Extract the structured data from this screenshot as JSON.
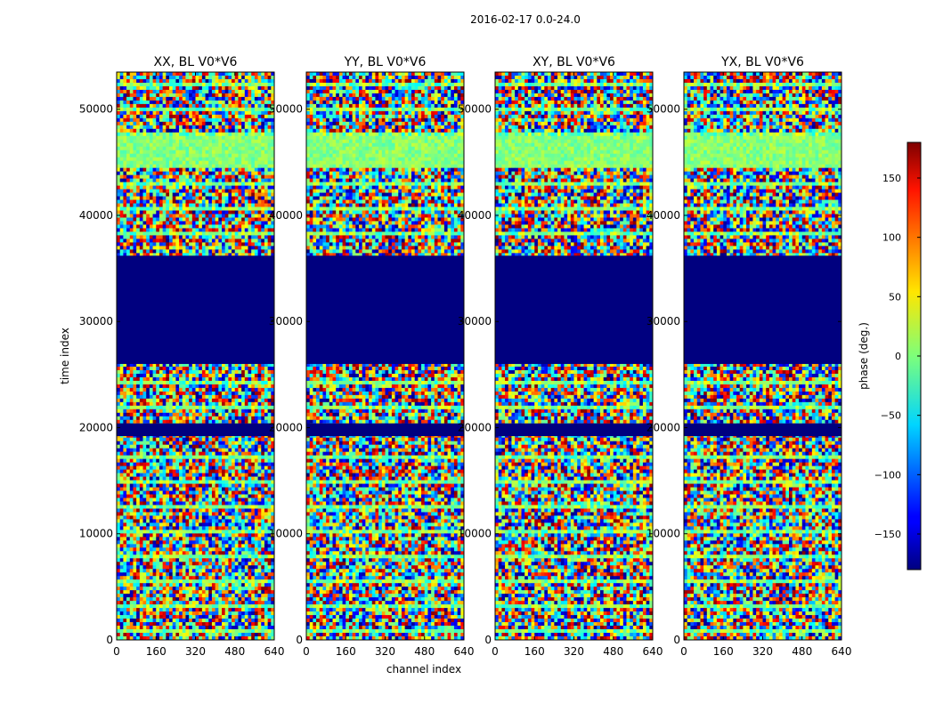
{
  "figure_title": "2016-02-17 0.0-24.0",
  "chart_data": {
    "type": "heatmap",
    "xlabel": "channel index",
    "ylabel": "time index",
    "xlim": [
      0,
      640
    ],
    "ylim": [
      0,
      53500
    ],
    "xticks": [
      0,
      160,
      320,
      480,
      640
    ],
    "yticks": [
      0,
      10000,
      20000,
      30000,
      40000,
      50000
    ],
    "colormap": "jet",
    "panels": [
      {
        "title": "XX, BL V0*V6"
      },
      {
        "title": "YY, BL V0*V6"
      },
      {
        "title": "XY, BL V0*V6"
      },
      {
        "title": "YX, BL V0*V6"
      }
    ],
    "colorbar": {
      "label": "phase (deg.)",
      "range": [
        -180,
        180
      ],
      "ticks": [
        -150,
        -100,
        -50,
        0,
        50,
        100,
        150
      ]
    },
    "flagged_time_ranges": [
      [
        26000,
        36200
      ],
      [
        19200,
        20400
      ]
    ]
  }
}
